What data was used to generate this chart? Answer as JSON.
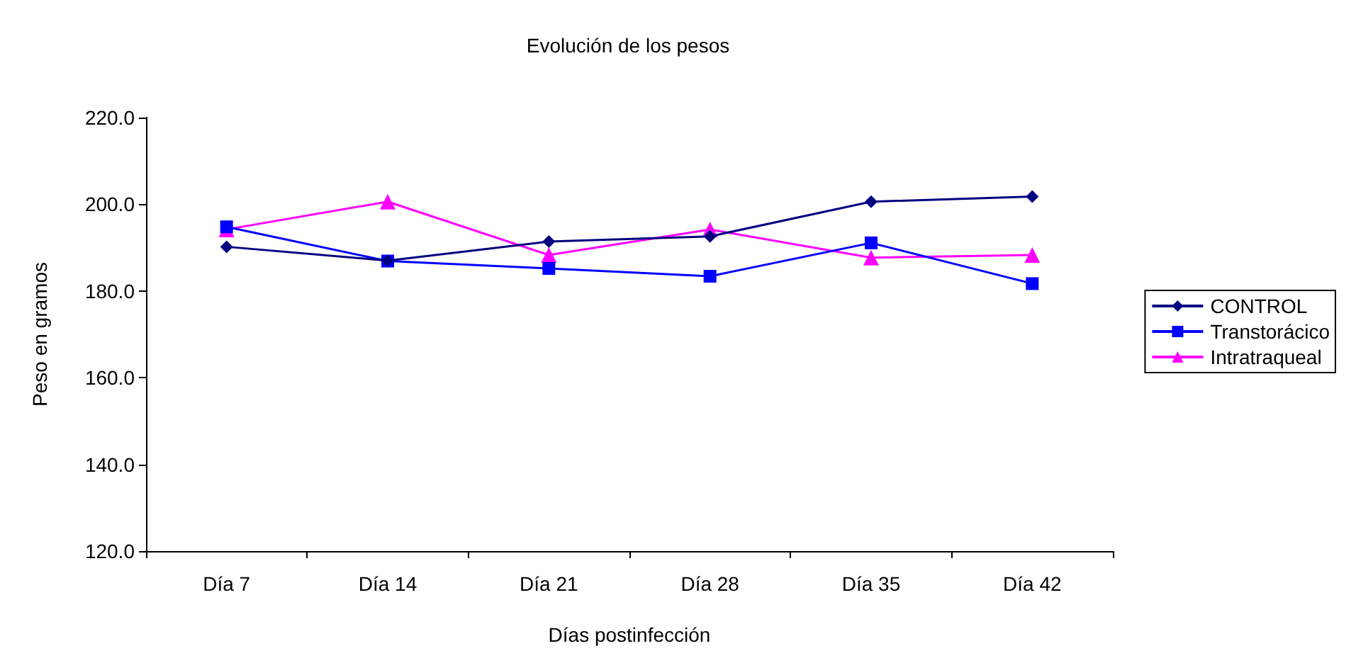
{
  "chart_data": {
    "type": "line",
    "title": "Evolución de los pesos",
    "xlabel": "Días postinfección",
    "ylabel": "Peso en gramos",
    "categories": [
      "Día 7",
      "Día 14",
      "Día 21",
      "Día 28",
      "Día 35",
      "Día 42"
    ],
    "series": [
      {
        "name": "CONTROL",
        "color": "#000080",
        "marker": "diamond",
        "values": [
          190.2,
          187.0,
          191.4,
          192.6,
          200.6,
          201.8
        ]
      },
      {
        "name": "Transtorácico",
        "color": "#0000ff",
        "marker": "square",
        "values": [
          194.8,
          186.9,
          185.2,
          183.4,
          191.1,
          181.7
        ]
      },
      {
        "name": "Intratraqueal",
        "color": "#ff00ff",
        "marker": "triangle",
        "values": [
          194.2,
          200.6,
          188.3,
          194.2,
          187.7,
          188.3
        ]
      }
    ],
    "ylim": [
      120,
      220
    ],
    "yticks": [
      {
        "value": 120,
        "label": "120.0"
      },
      {
        "value": 140,
        "label": "140.0"
      },
      {
        "value": 160,
        "label": "160.0"
      },
      {
        "value": 180,
        "label": "180.0"
      },
      {
        "value": 200,
        "label": "200.0"
      },
      {
        "value": 220,
        "label": "220.0"
      }
    ],
    "grid": false,
    "legend": "right"
  }
}
